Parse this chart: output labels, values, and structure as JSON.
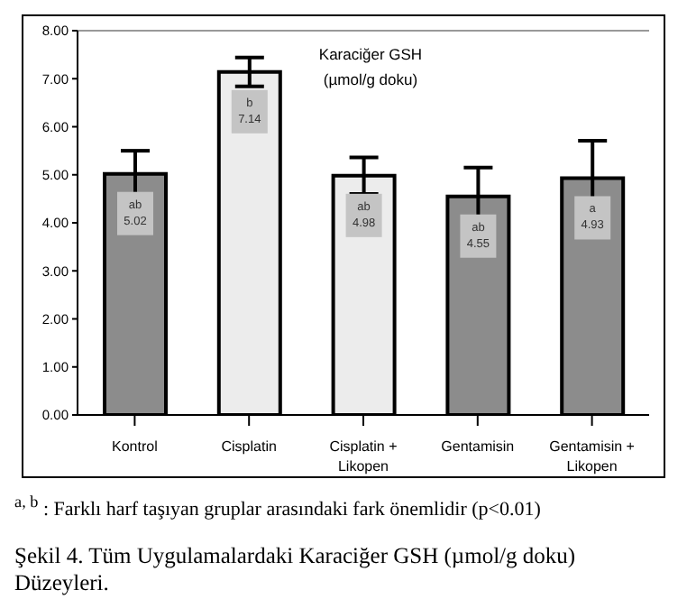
{
  "chart_data": {
    "type": "bar",
    "title": "Karaciğer GSH",
    "subtitle": "(µmol/g doku)",
    "categories": [
      "Kontrol",
      "Cisplatin",
      "Cisplatin + Likopen",
      "Gentamisin",
      "Gentamisin + Likopen"
    ],
    "values": [
      5.02,
      7.14,
      4.98,
      4.55,
      4.93
    ],
    "colors": [
      "#8c8c8c",
      "#ececec",
      "#ececec",
      "#8c8c8c",
      "#8c8c8c"
    ],
    "errors": [
      0.48,
      0.3,
      0.38,
      0.6,
      0.78
    ],
    "value_labels": [
      "ab 5.02",
      "b 7.14",
      "ab 4.98",
      "ab 4.55",
      "a 4.93"
    ],
    "ylim": [
      0,
      8
    ],
    "yticks": [
      {
        "value": 0,
        "label": "0.00"
      },
      {
        "value": 1,
        "label": "1.00"
      },
      {
        "value": 2,
        "label": "2.00"
      },
      {
        "value": 3,
        "label": "3.00"
      },
      {
        "value": 4,
        "label": "4.00"
      },
      {
        "value": 5,
        "label": "5.00"
      },
      {
        "value": 6,
        "label": "6.00"
      },
      {
        "value": 7,
        "label": "7.00"
      },
      {
        "value": 8,
        "label": "8.00"
      }
    ],
    "grid": false,
    "legend": false,
    "annotations": [
      "$^{a, b}$ : Farklı harf taşıyan gruplar arasındaki fark önemlidir (p<0.01)",
      "Şekil 4. Tüm Uygulamalardaki Karaciğer GSH (µmol/g doku) Düzeyleri."
    ]
  }
}
